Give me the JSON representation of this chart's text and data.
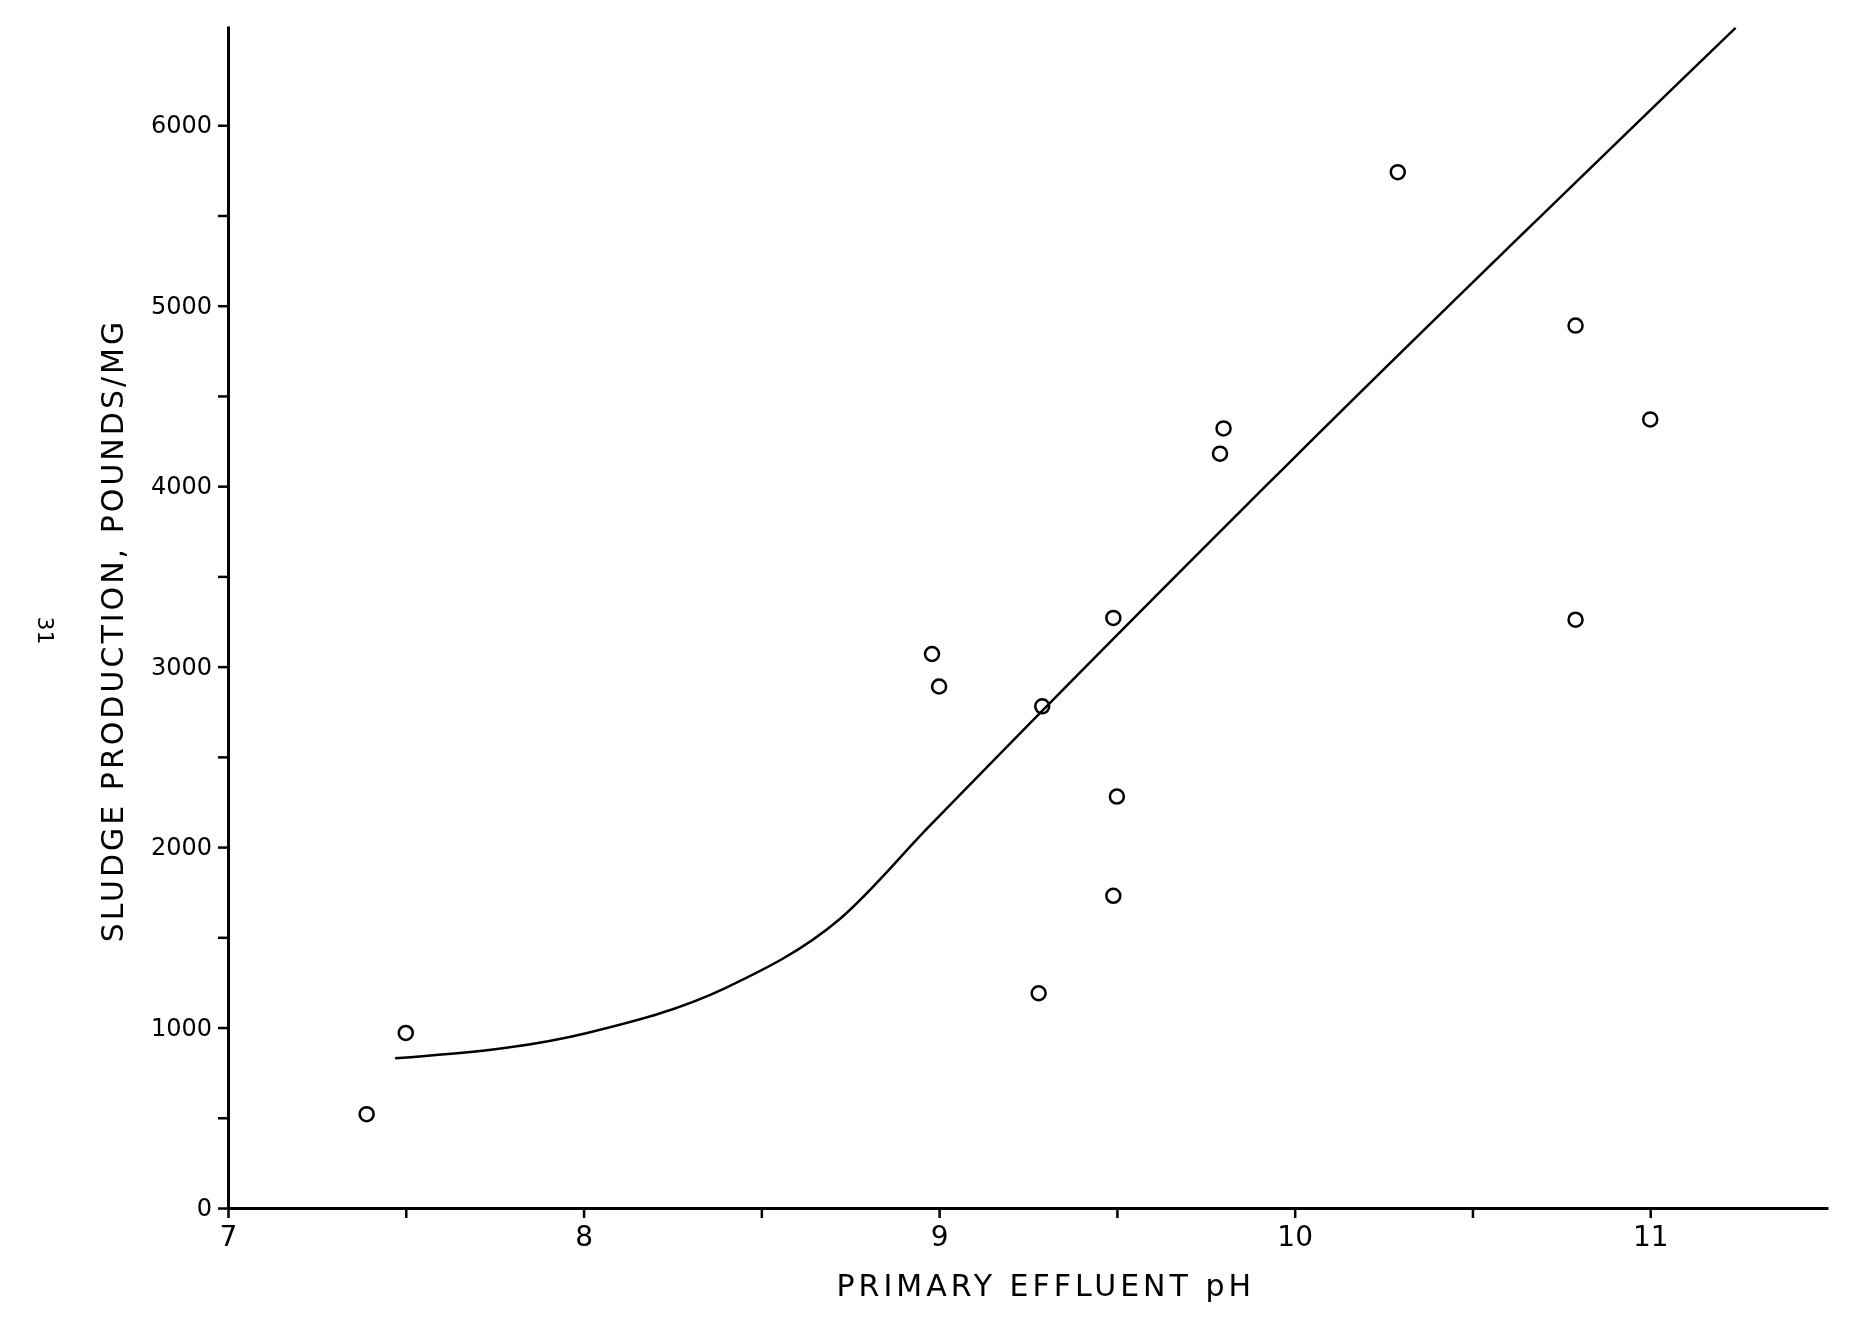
{
  "chart_data": {
    "type": "scatter",
    "xlabel": "PRIMARY EFFLUENT pH",
    "ylabel": "SLUDGE PRODUCTION, POUNDS/MG",
    "annotations": [
      "31"
    ],
    "xlim": [
      7,
      11.5
    ],
    "xticks": [
      7,
      {
        "value": 7.5,
        "label": null
      },
      8,
      {
        "value": 8.5,
        "label": null
      },
      9,
      {
        "value": 9.5,
        "label": null
      },
      10,
      {
        "value": 10.5,
        "label": null
      },
      11
    ],
    "ylim": [
      0,
      6550
    ],
    "yticks": [
      0,
      {
        "value": 500,
        "label": null
      },
      1000,
      {
        "value": 1500,
        "label": null
      },
      2000,
      {
        "value": 2500,
        "label": null
      },
      3000,
      {
        "value": 3500,
        "label": null
      },
      4000,
      {
        "value": 4500,
        "label": null
      },
      5000,
      {
        "value": 5500,
        "label": null
      },
      6000
    ],
    "grid": false,
    "series": [
      {
        "color": "#000000",
        "marker": "circle",
        "x": [
          7.39,
          7.5,
          8.98,
          9.0,
          9.29,
          9.28,
          9.49,
          9.5,
          9.49,
          9.79,
          9.8,
          10.29,
          10.79,
          11.0,
          10.79
        ],
        "values": [
          520,
          970,
          3070,
          2890,
          2780,
          1190,
          3270,
          2280,
          1730,
          4180,
          4320,
          5740,
          4890,
          4370,
          3260
        ]
      },
      {
        "type": "line",
        "color": "#000000",
        "marker": "none",
        "line_style": "solid",
        "x": [
          7.47,
          8.01,
          8.4,
          8.72,
          8.97,
          10.0,
          11.24
        ],
        "values": [
          830,
          970,
          1220,
          1600,
          2110,
          4160,
          6540
        ]
      }
    ]
  }
}
